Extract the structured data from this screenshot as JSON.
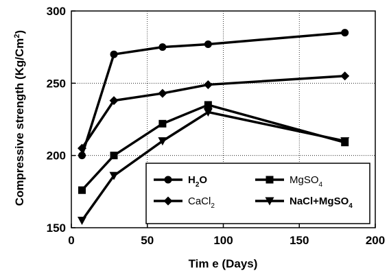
{
  "chart_data": {
    "type": "line",
    "title": "",
    "xlabel": "Tim e (Days)",
    "ylabel_main": "Compressive strength (Kg/Cm",
    "ylabel_sup": "2",
    "ylabel_tail": ")",
    "xlim": [
      0,
      200
    ],
    "ylim": [
      150,
      300
    ],
    "x_ticks": [
      0,
      50,
      100,
      150,
      200
    ],
    "y_ticks": [
      150,
      200,
      250,
      300
    ],
    "x_tick_labels": [
      "0",
      "50",
      "100",
      "150",
      "200"
    ],
    "y_tick_labels": [
      "150",
      "200",
      "250",
      "300"
    ],
    "grid": "dotted",
    "legend_position": "bottom-right",
    "series": [
      {
        "legend_main": "H",
        "legend_sub": "2",
        "legend_tail": "O",
        "legend_bold": true,
        "marker": "circle",
        "x": [
          7,
          28,
          60,
          90,
          180
        ],
        "y": [
          200,
          270,
          275,
          277,
          285
        ]
      },
      {
        "legend_main": "MgSO",
        "legend_sub": "4",
        "legend_tail": "",
        "legend_bold": false,
        "marker": "square",
        "x": [
          7,
          28,
          60,
          90,
          180
        ],
        "y": [
          176,
          200,
          222,
          235,
          209
        ]
      },
      {
        "legend_main": "CaCl",
        "legend_sub": "2",
        "legend_tail": "",
        "legend_bold": false,
        "marker": "diamond",
        "x": [
          7,
          28,
          60,
          90,
          180
        ],
        "y": [
          205,
          238,
          243,
          249,
          255
        ]
      },
      {
        "legend_main": "NaCl+MgSO",
        "legend_sub": "4",
        "legend_tail": "",
        "legend_bold": true,
        "marker": "triangle-down",
        "x": [
          7,
          28,
          60,
          90,
          180
        ],
        "y": [
          155,
          186,
          210,
          230,
          210
        ]
      }
    ]
  }
}
